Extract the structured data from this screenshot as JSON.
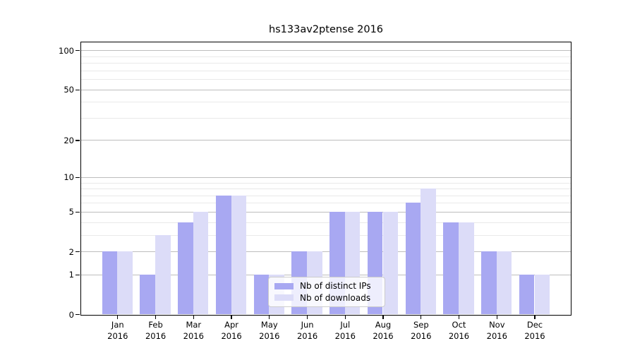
{
  "chart_data": {
    "type": "bar",
    "title": "hs133av2ptense 2016",
    "x_categories": [
      "Jan",
      "Feb",
      "Mar",
      "Apr",
      "May",
      "Jun",
      "Jul",
      "Aug",
      "Sep",
      "Oct",
      "Nov",
      "Dec"
    ],
    "x_year": "2016",
    "series": [
      {
        "name": "Nb of distinct IPs",
        "color": "#a8a8f2",
        "values": [
          2,
          1,
          4,
          7,
          1,
          2,
          5,
          5,
          6,
          4,
          2,
          1
        ]
      },
      {
        "name": "Nb of downloads",
        "color": "#dcdcf8",
        "values": [
          2,
          3,
          5,
          7,
          1,
          2,
          5,
          5,
          8,
          4,
          2,
          1
        ]
      }
    ],
    "y_scale": "log1p",
    "y_ticks": [
      0,
      1,
      2,
      5,
      10,
      20,
      50,
      100
    ],
    "y_minor_gridlines": [
      3,
      4,
      6,
      7,
      8,
      9,
      30,
      40,
      60,
      70,
      80,
      90
    ],
    "y_axis_top_value": 115,
    "grid": true,
    "legend_position": "lower-center",
    "colors": {
      "major_grid": "#bdbdbd",
      "minor_grid": "#e9e9e9",
      "axis": "#000000",
      "text": "#000000",
      "background": "#ffffff"
    }
  }
}
